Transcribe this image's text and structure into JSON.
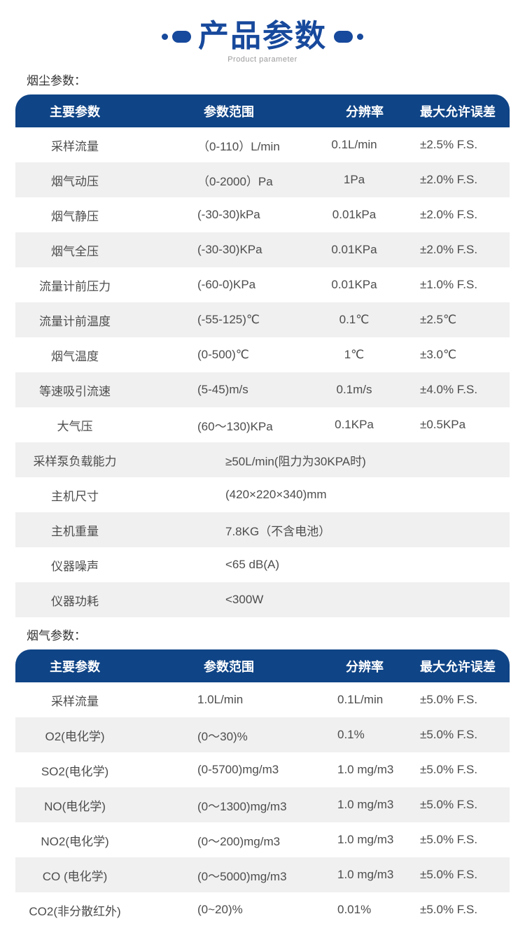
{
  "page": {
    "title": "产品参数",
    "subtitle": "Product parameter"
  },
  "colors": {
    "title_blue": "#17499c",
    "header_bg": "#0f4486",
    "row_alt_bg": "#f0f0f0",
    "cell_text": "#4d4d4d"
  },
  "tables": [
    {
      "section_label": "烟尘参数：",
      "headers": [
        "主要参数",
        "参数范围",
        "分辨率",
        "最大允许误差"
      ],
      "rows": [
        {
          "name": "采样流量",
          "range": "（0-110）L/min",
          "resolution": "0.1L/min",
          "error": "±2.5% F.S."
        },
        {
          "name": "烟气动压",
          "range": "（0-2000）Pa",
          "resolution": "1Pa",
          "error": "±2.0% F.S."
        },
        {
          "name": "烟气静压",
          "range": "(-30-30)kPa",
          "resolution": "0.01kPa",
          "error": "±2.0% F.S."
        },
        {
          "name": "烟气全压",
          "range": "(-30-30)KPa",
          "resolution": "0.01KPa",
          "error": "±2.0% F.S."
        },
        {
          "name": "流量计前压力",
          "range": "(-60-0)KPa",
          "resolution": "0.01KPa",
          "error": "±1.0% F.S."
        },
        {
          "name": "流量计前温度",
          "range": "(-55-125)℃",
          "resolution": "0.1℃",
          "error": "±2.5℃"
        },
        {
          "name": "烟气温度",
          "range": "(0-500)℃",
          "resolution": "1℃",
          "error": "±3.0℃"
        },
        {
          "name": "等速吸引流速",
          "range": "(5-45)m/s",
          "resolution": "0.1m/s",
          "error": "±4.0% F.S."
        },
        {
          "name": "大气压",
          "range": "(60～130)KPa",
          "resolution": "0.1KPa",
          "error": "±0.5KPa"
        },
        {
          "name": "采样泵负载能力",
          "merged": "≥50L/min(阻力为30KPA时)"
        },
        {
          "name": "主机尺寸",
          "merged": "(420×220×340)mm"
        },
        {
          "name": "主机重量",
          "merged": "7.8KG（不含电池）"
        },
        {
          "name": "仪器噪声",
          "merged": "<65 dB(A)"
        },
        {
          "name": "仪器功耗",
          "merged": "<300W"
        }
      ]
    },
    {
      "section_label": "烟气参数：",
      "headers": [
        "主要参数",
        "参数范围",
        "分辨率",
        "最大允许误差"
      ],
      "rows": [
        {
          "name": "采样流量",
          "range": "1.0L/min",
          "resolution": "0.1L/min",
          "error": "±5.0% F.S."
        },
        {
          "name": "O2(电化学)",
          "range": "(0～30)%",
          "resolution": "0.1%",
          "error": "±5.0% F.S."
        },
        {
          "name": "SO2(电化学)",
          "range": "(0-5700)mg/m3",
          "resolution": "1.0 mg/m3",
          "error": "±5.0% F.S."
        },
        {
          "name": "NO(电化学)",
          "range": "(0～1300)mg/m3",
          "resolution": "1.0 mg/m3",
          "error": "±5.0% F.S."
        },
        {
          "name": "NO2(电化学)",
          "range": "(0～200)mg/m3",
          "resolution": "1.0 mg/m3",
          "error": "±5.0% F.S."
        },
        {
          "name": "CO (电化学)",
          "range": "(0～5000)mg/m3",
          "resolution": "1.0 mg/m3",
          "error": "±5.0% F.S."
        },
        {
          "name": "CO2(非分散红外)",
          "range": "(0~20)%",
          "resolution": "0.01%",
          "error": "±5.0% F.S."
        }
      ]
    }
  ]
}
